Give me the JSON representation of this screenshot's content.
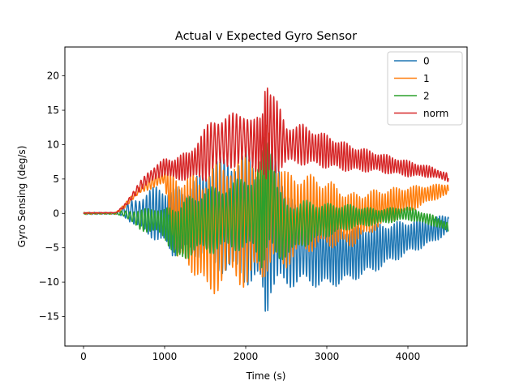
{
  "chart_data": {
    "type": "line",
    "title": "Actual v Expected Gyro Sensor",
    "xlabel": "Time (s)",
    "ylabel": "Gyro Sensing (deg/s)",
    "xlim": [
      -230,
      4730
    ],
    "ylim": [
      -19.3,
      24.2
    ],
    "xticks": [
      0,
      1000,
      2000,
      3000,
      4000
    ],
    "yticks": [
      -15,
      -10,
      -5,
      0,
      5,
      10,
      15,
      20
    ],
    "ytick_labels": [
      "−15",
      "−10",
      "−5",
      "0",
      "5",
      "10",
      "15",
      "20"
    ],
    "grid": false,
    "legend_position": "top-right",
    "series": [
      {
        "name": "0",
        "color": "#1f77b4",
        "envelope": {
          "x": [
            0,
            400,
            500,
            600,
            700,
            800,
            900,
            1000,
            1100,
            1150,
            1300,
            1500,
            1600,
            1800,
            2000,
            2100,
            2200,
            2250,
            2300,
            2400,
            2500,
            2700,
            3000,
            3300,
            3600,
            4000,
            4300,
            4500
          ],
          "center": [
            0,
            0,
            0.3,
            0.2,
            0,
            0,
            0,
            -0.5,
            -1.5,
            -1.0,
            -1.0,
            0,
            0,
            -0.5,
            -0.5,
            -1.5,
            -2,
            -3,
            -1.0,
            -1,
            -4,
            -5,
            -6.0,
            -6.0,
            -5.0,
            -3.5,
            -2.5,
            -1.5
          ],
          "amp": [
            0.15,
            0.15,
            0.8,
            1.8,
            2.5,
            3.5,
            4.0,
            4.5,
            5.0,
            5.0,
            5.0,
            7.0,
            8.0,
            9.0,
            10.0,
            9.0,
            10.0,
            13.0,
            11.0,
            11.0,
            7.0,
            5.5,
            5.0,
            4.0,
            3.5,
            2.5,
            2.0,
            1.3
          ],
          "period": [
            60,
            60,
            55,
            50,
            45,
            40,
            40,
            35,
            35,
            35,
            35,
            40,
            45,
            45,
            45,
            40,
            30,
            30,
            40,
            40,
            40,
            40,
            35,
            35,
            35,
            35,
            35,
            35
          ]
        }
      },
      {
        "name": "1",
        "color": "#ff7f0e",
        "envelope": {
          "x": [
            0,
            400,
            500,
            600,
            700,
            800,
            900,
            1000,
            1100,
            1150,
            1300,
            1500,
            1600,
            1800,
            2000,
            2100,
            2200,
            2250,
            2300,
            2400,
            2500,
            2700,
            3000,
            3300,
            3600,
            4000,
            4300,
            4500
          ],
          "center": [
            0,
            0,
            1.0,
            2.3,
            3.5,
            4.2,
            4.8,
            5.2,
            1.0,
            -1.0,
            -1.0,
            -3.0,
            -2.0,
            -1.0,
            -1.0,
            0,
            0,
            2.0,
            2.0,
            0,
            -1.0,
            0,
            0,
            -1.0,
            0.5,
            2.0,
            3.0,
            3.5
          ],
          "amp": [
            0.15,
            0.15,
            0.3,
            0.5,
            0.6,
            0.8,
            1.0,
            1.0,
            5.0,
            6.5,
            7.0,
            9.0,
            10.0,
            9.0,
            10.0,
            10.0,
            10.0,
            11.0,
            11.0,
            8.0,
            7.0,
            6.0,
            5.0,
            4.0,
            3.0,
            2.0,
            1.2,
            0.9
          ],
          "period": [
            60,
            60,
            55,
            50,
            45,
            40,
            40,
            35,
            35,
            35,
            35,
            40,
            45,
            45,
            45,
            40,
            30,
            30,
            40,
            40,
            40,
            40,
            35,
            35,
            35,
            35,
            35,
            35
          ]
        }
      },
      {
        "name": "2",
        "color": "#2ca02c",
        "envelope": {
          "x": [
            0,
            400,
            500,
            600,
            700,
            800,
            900,
            1000,
            1100,
            1150,
            1300,
            1500,
            1600,
            1800,
            2000,
            2100,
            2200,
            2250,
            2300,
            2400,
            2500,
            2700,
            3000,
            3300,
            3600,
            4000,
            4300,
            4500
          ],
          "center": [
            0,
            0,
            0,
            -0.5,
            -1.0,
            -1.0,
            -1.0,
            -1.5,
            -2.5,
            -3.0,
            -2.0,
            -1.0,
            -1.0,
            -0.5,
            0,
            0,
            0,
            3.0,
            3.0,
            -1.5,
            -2.5,
            -1.5,
            -1.0,
            -0.5,
            -0.5,
            0,
            -1.0,
            -2.0
          ],
          "amp": [
            0.1,
            0.1,
            0.5,
            1.0,
            1.5,
            1.8,
            2.0,
            2.2,
            3.5,
            4.5,
            4.5,
            4.5,
            5.0,
            5.0,
            5.5,
            6.0,
            8.0,
            10.0,
            9.5,
            5.5,
            4.0,
            3.5,
            2.5,
            1.8,
            1.2,
            1.0,
            0.8,
            0.7
          ],
          "period": [
            60,
            60,
            55,
            50,
            45,
            40,
            40,
            35,
            35,
            35,
            35,
            40,
            45,
            45,
            45,
            40,
            30,
            30,
            40,
            40,
            40,
            40,
            35,
            35,
            35,
            35,
            35,
            35
          ]
        }
      },
      {
        "name": "norm",
        "color": "#d62728",
        "envelope": {
          "x": [
            0,
            400,
            500,
            600,
            700,
            800,
            900,
            1000,
            1100,
            1150,
            1300,
            1500,
            1600,
            1800,
            2000,
            2100,
            2200,
            2250,
            2300,
            2400,
            2500,
            2700,
            3000,
            3300,
            3600,
            4000,
            4300,
            4500
          ],
          "center": [
            0.05,
            0.1,
            1.0,
            2.5,
            4.0,
            5.2,
            6.0,
            6.8,
            6.5,
            6.5,
            7.0,
            8.5,
            10.0,
            10.5,
            11.0,
            10.0,
            10.0,
            12.0,
            12.0,
            11.0,
            10.0,
            10.0,
            9.0,
            8.0,
            7.5,
            6.5,
            6.0,
            5.2
          ],
          "amp": [
            0.05,
            0.05,
            0.3,
            0.5,
            0.7,
            1.0,
            1.2,
            1.2,
            1.5,
            2.0,
            2.0,
            4.0,
            4.0,
            4.0,
            4.0,
            4.0,
            4.0,
            10.0,
            7.0,
            5.0,
            3.0,
            3.0,
            2.5,
            2.0,
            1.5,
            1.2,
            0.8,
            0.6
          ],
          "period": [
            60,
            60,
            55,
            50,
            45,
            40,
            40,
            35,
            35,
            35,
            35,
            40,
            45,
            45,
            45,
            40,
            30,
            30,
            40,
            40,
            40,
            40,
            35,
            35,
            35,
            35,
            35,
            35
          ]
        }
      }
    ]
  }
}
